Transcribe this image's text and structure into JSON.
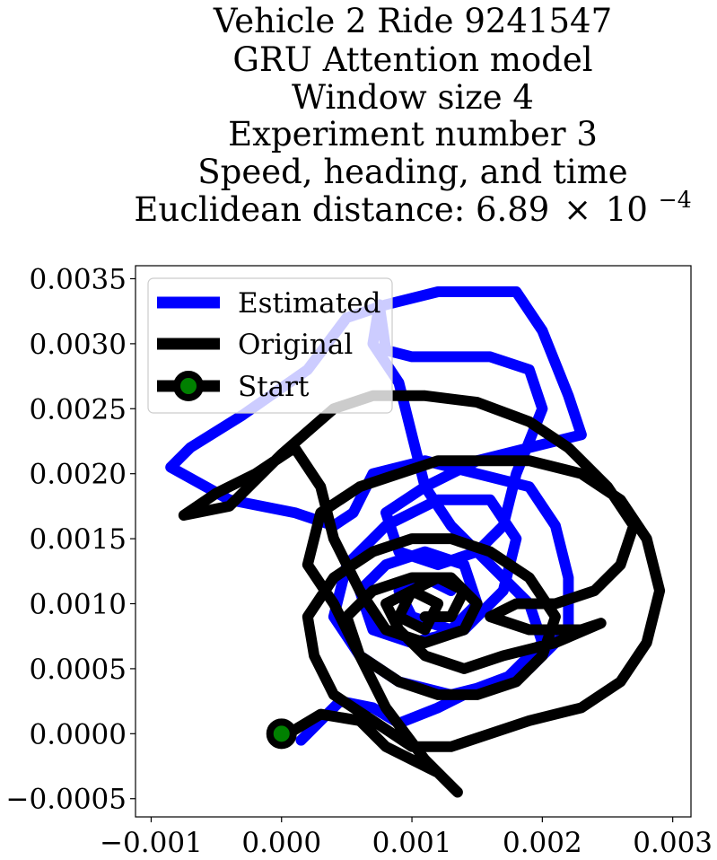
{
  "chart_data": {
    "type": "line",
    "title_lines": [
      "Vehicle 2 Ride 9241547",
      "GRU Attention model",
      "Window size 4",
      "Experiment number 3",
      "Speed, heading, and time"
    ],
    "title_metric": {
      "prefix": "Euclidean distance: ",
      "mantissa": "6.89",
      "times": "×",
      "base": "10",
      "exponent": "−4"
    },
    "xlabel": "",
    "ylabel": "",
    "xlim": [
      -0.00112,
      0.00314
    ],
    "ylim": [
      -0.00064,
      0.0036
    ],
    "x_ticks": [
      -0.001,
      0.0,
      0.001,
      0.002,
      0.003
    ],
    "x_tick_labels": [
      "−0.001",
      "0.000",
      "0.001",
      "0.002",
      "0.003"
    ],
    "y_ticks": [
      -0.0005,
      0.0,
      0.0005,
      0.001,
      0.0015,
      0.002,
      0.0025,
      0.003,
      0.0035
    ],
    "y_tick_labels": [
      "−0.0005",
      "0.0000",
      "0.0005",
      "0.0010",
      "0.0015",
      "0.0020",
      "0.0025",
      "0.0030",
      "0.0035"
    ],
    "grid": false,
    "legend_position": "upper-left",
    "series": [
      {
        "name": "Estimated",
        "color": "#0000ff",
        "points": [
          [
            0.00015,
            -5e-05
          ],
          [
            0.0003,
            0.0001
          ],
          [
            0.00045,
            0.00025
          ],
          [
            0.0007,
            0.0002
          ],
          [
            0.0009,
            8e-05
          ],
          [
            0.0012,
            0.0002
          ],
          [
            0.0015,
            0.00035
          ],
          [
            0.0019,
            0.0005
          ],
          [
            0.0022,
            0.0008
          ],
          [
            0.0022,
            0.0012
          ],
          [
            0.0021,
            0.0016
          ],
          [
            0.0019,
            0.0019
          ],
          [
            0.0015,
            0.002
          ],
          [
            0.0011,
            0.0021
          ],
          [
            0.0007,
            0.002
          ],
          [
            0.00055,
            0.0017
          ],
          [
            0.0004,
            0.0016
          ],
          [
            0.0001,
            0.0017
          ],
          [
            -0.0004,
            0.0018
          ],
          [
            -0.00085,
            0.00205
          ],
          [
            -0.0007,
            0.0022
          ],
          [
            -0.0003,
            0.00245
          ],
          [
            0.0002,
            0.0028
          ],
          [
            0.0005,
            0.0032
          ],
          [
            0.0008,
            0.0033
          ],
          [
            0.0012,
            0.0034
          ],
          [
            0.0018,
            0.0034
          ],
          [
            0.002,
            0.0031
          ],
          [
            0.0022,
            0.0026
          ],
          [
            0.0023,
            0.0023
          ],
          [
            0.0019,
            0.0022
          ],
          [
            0.0015,
            0.0021
          ],
          [
            0.0011,
            0.0019
          ],
          [
            0.0008,
            0.0017
          ],
          [
            0.0009,
            0.0014
          ],
          [
            0.0012,
            0.0013
          ],
          [
            0.0015,
            0.0014
          ],
          [
            0.0017,
            0.0016
          ],
          [
            0.0018,
            0.002
          ],
          [
            0.002,
            0.0025
          ],
          [
            0.0019,
            0.0028
          ],
          [
            0.0016,
            0.0029
          ],
          [
            0.001,
            0.0029
          ],
          [
            0.0008,
            0.00295
          ],
          [
            0.00075,
            0.0033
          ],
          [
            0.0007,
            0.003
          ],
          [
            0.0009,
            0.0027
          ],
          [
            0.001,
            0.0023
          ],
          [
            0.0011,
            0.0019
          ],
          [
            0.0013,
            0.0016
          ],
          [
            0.0016,
            0.0013
          ],
          [
            0.0019,
            0.001
          ],
          [
            0.002,
            0.0007
          ],
          [
            0.0017,
            0.0004
          ],
          [
            0.0013,
            0.0003
          ],
          [
            0.0009,
            0.0004
          ],
          [
            0.0006,
            0.0006
          ],
          [
            0.0004,
            0.0009
          ],
          [
            0.0005,
            0.0013
          ],
          [
            0.0008,
            0.0016
          ],
          [
            0.0012,
            0.0018
          ],
          [
            0.0016,
            0.0018
          ],
          [
            0.0018,
            0.0015
          ],
          [
            0.0017,
            0.0011
          ],
          [
            0.0014,
            0.0008
          ],
          [
            0.001,
            0.0007
          ],
          [
            0.0007,
            0.0008
          ],
          [
            0.0006,
            0.0011
          ],
          [
            0.0008,
            0.0013
          ],
          [
            0.0011,
            0.0014
          ],
          [
            0.0014,
            0.0013
          ],
          [
            0.0015,
            0.001
          ],
          [
            0.0013,
            0.0008
          ],
          [
            0.001,
            0.0009
          ],
          [
            0.0009,
            0.0011
          ],
          [
            0.0011,
            0.0012
          ],
          [
            0.0013,
            0.0011
          ]
        ]
      },
      {
        "name": "Original",
        "color": "#000000",
        "points": [
          [
            0.0,
            0.0
          ],
          [
            0.0001,
            3e-05
          ],
          [
            0.0003,
            0.00015
          ],
          [
            0.0006,
            0.0001
          ],
          [
            0.0008,
            -0.0001
          ],
          [
            0.001,
            -0.0002
          ],
          [
            0.0012,
            -0.0003
          ],
          [
            0.00135,
            -0.00045
          ],
          [
            0.0013,
            -0.0004
          ],
          [
            0.0011,
            -0.0002
          ],
          [
            0.0008,
            0.0002
          ],
          [
            0.0006,
            0.0006
          ],
          [
            0.0004,
            0.001
          ],
          [
            0.0002,
            0.0013
          ],
          [
            0.0003,
            0.0017
          ],
          [
            0.0006,
            0.0019
          ],
          [
            0.0009,
            0.002
          ],
          [
            0.0012,
            0.0021
          ],
          [
            0.0015,
            0.0021
          ],
          [
            0.0019,
            0.0021
          ],
          [
            0.0023,
            0.002
          ],
          [
            0.0026,
            0.0018
          ],
          [
            0.0028,
            0.0015
          ],
          [
            0.0029,
            0.0011
          ],
          [
            0.0028,
            0.0007
          ],
          [
            0.0026,
            0.0004
          ],
          [
            0.0023,
            0.0002
          ],
          [
            0.0019,
            0.0001
          ],
          [
            0.0016,
            0.0
          ],
          [
            0.0013,
            -0.0001
          ],
          [
            0.001,
            -0.0001
          ],
          [
            0.0007,
            0.0001
          ],
          [
            0.0004,
            0.0003
          ],
          [
            0.00025,
            0.0006
          ],
          [
            0.0002,
            0.0009
          ],
          [
            0.0004,
            0.0012
          ],
          [
            0.0007,
            0.0014
          ],
          [
            0.001,
            0.0015
          ],
          [
            0.0013,
            0.0015
          ],
          [
            0.0016,
            0.0014
          ],
          [
            0.0019,
            0.0012
          ],
          [
            0.0021,
            0.0009
          ],
          [
            0.002,
            0.0006
          ],
          [
            0.0018,
            0.0004
          ],
          [
            0.0015,
            0.0003
          ],
          [
            0.0012,
            0.0003
          ],
          [
            0.0009,
            0.0004
          ],
          [
            0.0006,
            0.0006
          ],
          [
            0.0005,
            0.0009
          ],
          [
            0.0007,
            0.0011
          ],
          [
            0.001,
            0.0012
          ],
          [
            0.0013,
            0.0012
          ],
          [
            0.0015,
            0.001
          ],
          [
            0.0014,
            0.0008
          ],
          [
            0.0011,
            0.0007
          ],
          [
            0.0008,
            0.0008
          ],
          [
            0.0006,
            0.0011
          ],
          [
            0.0004,
            0.0015
          ],
          [
            0.0003,
            0.0019
          ],
          [
            0.0001,
            0.0022
          ],
          [
            -0.0002,
            0.002
          ],
          [
            -0.0005,
            0.00185
          ],
          [
            -0.00075,
            0.00168
          ],
          [
            -0.0004,
            0.00175
          ],
          [
            0.0,
            0.00215
          ],
          [
            0.0004,
            0.0025
          ],
          [
            0.0007,
            0.0026
          ],
          [
            0.0011,
            0.0026
          ],
          [
            0.0015,
            0.00255
          ],
          [
            0.0019,
            0.0024
          ],
          [
            0.0022,
            0.0022
          ],
          [
            0.0025,
            0.0019
          ],
          [
            0.0027,
            0.0016
          ],
          [
            0.0026,
            0.0013
          ],
          [
            0.0024,
            0.0011
          ],
          [
            0.0021,
            0.001
          ],
          [
            0.0018,
            0.001
          ],
          [
            0.0016,
            0.0009
          ],
          [
            0.0019,
            0.0008
          ],
          [
            0.0023,
            0.0008
          ],
          [
            0.00245,
            0.00085
          ],
          [
            0.0021,
            0.0007
          ],
          [
            0.0017,
            0.0006
          ],
          [
            0.0014,
            0.0005
          ],
          [
            0.0011,
            0.0006
          ],
          [
            0.0009,
            0.0008
          ],
          [
            0.0008,
            0.001
          ],
          [
            0.001,
            0.0011
          ],
          [
            0.0012,
            0.001
          ],
          [
            0.0011,
            0.0008
          ],
          [
            0.0009,
            0.0009
          ],
          [
            0.001,
            0.0011
          ],
          [
            0.0012,
            0.0012
          ],
          [
            0.0014,
            0.0011
          ],
          [
            0.0013,
            0.0009
          ],
          [
            0.0011,
            0.0009
          ]
        ]
      }
    ],
    "start_marker": {
      "name": "Start",
      "x": 0.0,
      "y": 0.0,
      "fill": "#008000",
      "edge": "#000000"
    }
  }
}
